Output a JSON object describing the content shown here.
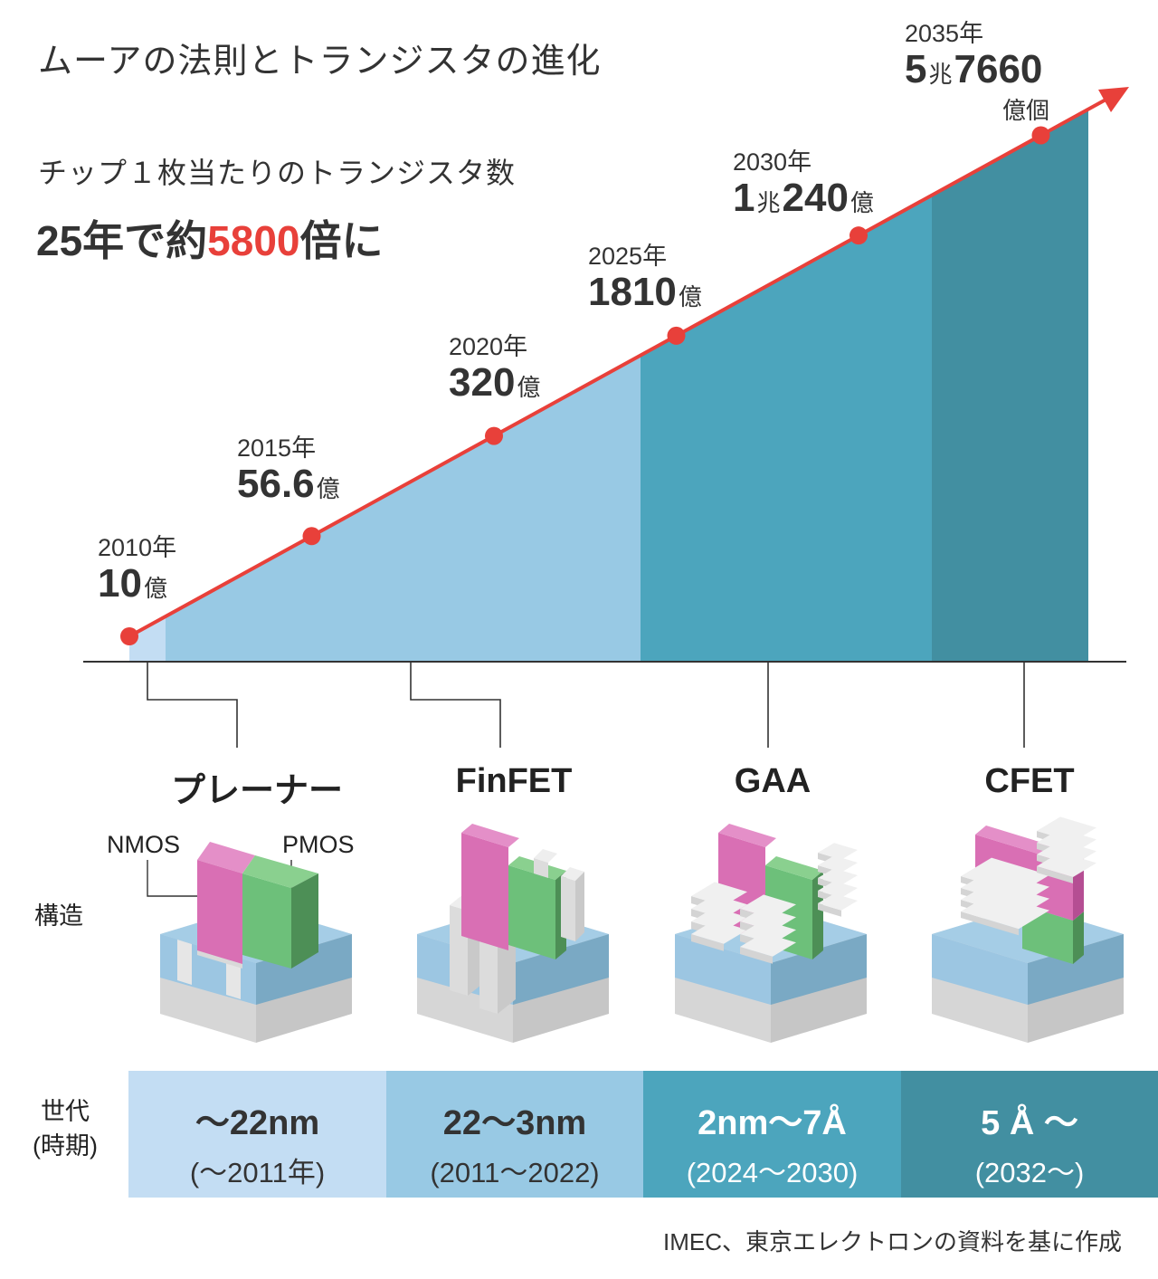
{
  "title": "ムーアの法則とトランジスタの進化",
  "subtitle": "チップ１枚当たりのトランジスタ数",
  "headline": {
    "pre": "25年で約",
    "highlight": "5800",
    "post": "倍に"
  },
  "colors": {
    "line": "#e8403a",
    "planar": "#c3ddf3",
    "finfet": "#98c9e4",
    "gaa": "#4ca5bd",
    "cfet": "#428fa1",
    "nmos": "#d96fb4",
    "pmos": "#6dc07a",
    "substrate": "#7fbde6"
  },
  "chart_data": {
    "type": "line",
    "x": [
      2010,
      2015,
      2020,
      2025,
      2030,
      2035
    ],
    "values_oku": [
      10,
      56.6,
      320,
      1810,
      10240,
      57660
    ],
    "points": [
      {
        "year": "2010年",
        "value": "10",
        "unit": "億"
      },
      {
        "year": "2015年",
        "value": "56.6",
        "unit": "億"
      },
      {
        "year": "2020年",
        "value": "320",
        "unit": "億"
      },
      {
        "year": "2025年",
        "value": "1810",
        "unit": "億"
      },
      {
        "year": "2030年",
        "value_a": "1",
        "cho": "兆",
        "value": "240",
        "unit": "億"
      },
      {
        "year": "2035年",
        "value_a": "5",
        "cho": "兆",
        "value": "7660",
        "unit": "億個"
      }
    ],
    "yscale": "log",
    "grid": false
  },
  "technologies": [
    {
      "name": "プレーナー"
    },
    {
      "name": "FinFET"
    },
    {
      "name": "GAA"
    },
    {
      "name": "CFET"
    }
  ],
  "structure_label": "構造",
  "cube_labels": {
    "nmos": "NMOS",
    "pmos": "PMOS"
  },
  "generation_label": {
    "line1": "世代",
    "line2": "(時期)"
  },
  "generations": [
    {
      "node": "～22nm",
      "period": "(～2011年)"
    },
    {
      "node": "22～3nm",
      "period": "(2011～2022)"
    },
    {
      "node": "2nm～7Å",
      "period": "(2024～2030)"
    },
    {
      "node": "5 Å ～",
      "period": "(2032～)"
    }
  ],
  "source": "IMEC、東京エレクトロンの資料を基に作成"
}
